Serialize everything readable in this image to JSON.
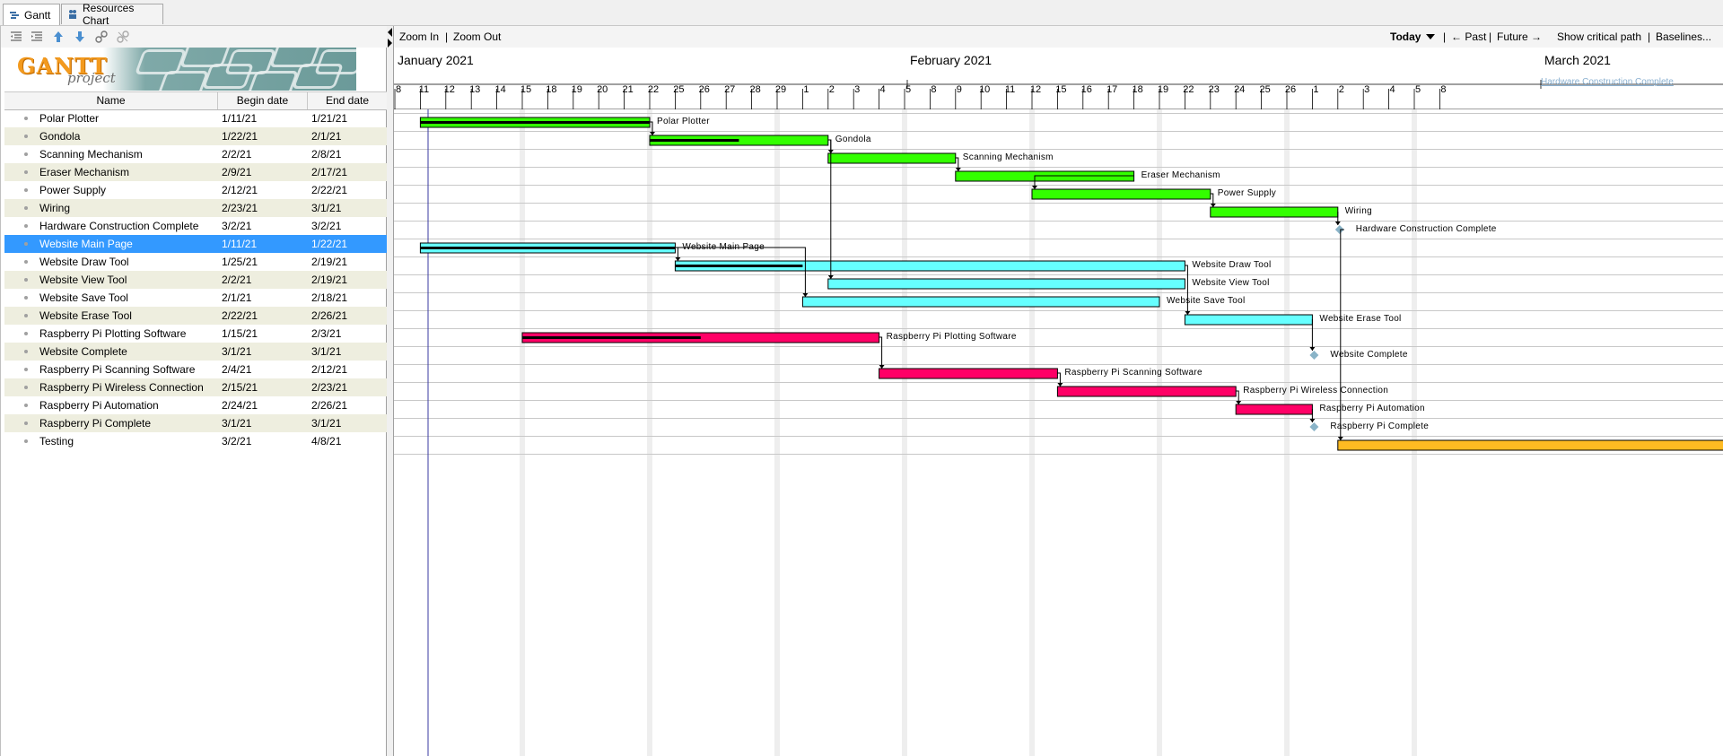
{
  "tabs": [
    {
      "label": "Gantt",
      "active": true
    },
    {
      "label": "Resources Chart",
      "active": false
    }
  ],
  "left_toolbar": [
    "outdent-icon",
    "indent-icon",
    "move-up-icon",
    "move-down-icon",
    "link-icon",
    "unlink-icon"
  ],
  "logo": {
    "title": "GANTT",
    "subtitle": "project"
  },
  "columns": {
    "name": "Name",
    "begin": "Begin date",
    "end": "End date"
  },
  "tasks": [
    {
      "name": "Polar Plotter",
      "begin": "1/11/21",
      "end": "1/21/21",
      "color": "#33ff00",
      "progress": 1.0,
      "type": "task"
    },
    {
      "name": "Gondola",
      "begin": "1/22/21",
      "end": "2/1/21",
      "color": "#33ff00",
      "progress": 0.5,
      "type": "task"
    },
    {
      "name": "Scanning Mechanism",
      "begin": "2/2/21",
      "end": "2/8/21",
      "color": "#33ff00",
      "progress": 0,
      "type": "task"
    },
    {
      "name": "Eraser Mechanism",
      "begin": "2/9/21",
      "end": "2/17/21",
      "color": "#33ff00",
      "progress": 0,
      "type": "task"
    },
    {
      "name": "Power Supply",
      "begin": "2/12/21",
      "end": "2/22/21",
      "color": "#33ff00",
      "progress": 0,
      "type": "task"
    },
    {
      "name": "Wiring",
      "begin": "2/23/21",
      "end": "3/1/21",
      "color": "#33ff00",
      "progress": 0,
      "type": "task"
    },
    {
      "name": "Hardware Construction Complete",
      "begin": "3/2/21",
      "end": "3/2/21",
      "color": "#8ab4c8",
      "progress": 0,
      "type": "milestone"
    },
    {
      "name": "Website Main Page",
      "begin": "1/11/21",
      "end": "1/22/21",
      "color": "#66ffff",
      "progress": 1.0,
      "type": "task",
      "selected": true
    },
    {
      "name": "Website Draw Tool",
      "begin": "1/25/21",
      "end": "2/19/21",
      "color": "#66ffff",
      "progress": 0.25,
      "type": "task"
    },
    {
      "name": "Website View Tool",
      "begin": "2/2/21",
      "end": "2/19/21",
      "color": "#66ffff",
      "progress": 0,
      "type": "task"
    },
    {
      "name": "Website Save Tool",
      "begin": "2/1/21",
      "end": "2/18/21",
      "color": "#66ffff",
      "progress": 0,
      "type": "task"
    },
    {
      "name": "Website Erase Tool",
      "begin": "2/22/21",
      "end": "2/26/21",
      "color": "#66ffff",
      "progress": 0,
      "type": "task"
    },
    {
      "name": "Raspberry Pi Plotting Software",
      "begin": "1/15/21",
      "end": "2/3/21",
      "color": "#ff0066",
      "progress": 0.5,
      "type": "task"
    },
    {
      "name": "Website Complete",
      "begin": "3/1/21",
      "end": "3/1/21",
      "color": "#8ab4c8",
      "progress": 0,
      "type": "milestone"
    },
    {
      "name": "Raspberry Pi Scanning Software",
      "begin": "2/4/21",
      "end": "2/12/21",
      "color": "#ff0066",
      "progress": 0,
      "type": "task"
    },
    {
      "name": "Raspberry Pi Wireless Connection",
      "begin": "2/15/21",
      "end": "2/23/21",
      "color": "#ff0066",
      "progress": 0,
      "type": "task"
    },
    {
      "name": "Raspberry Pi Automation",
      "begin": "2/24/21",
      "end": "2/26/21",
      "color": "#ff0066",
      "progress": 0,
      "type": "task"
    },
    {
      "name": "Raspberry Pi Complete",
      "begin": "3/1/21",
      "end": "3/1/21",
      "color": "#8ab4c8",
      "progress": 0,
      "type": "milestone"
    },
    {
      "name": "Testing",
      "begin": "3/2/21",
      "end": "4/8/21",
      "color": "#ffbb22",
      "progress": 0,
      "type": "task"
    }
  ],
  "chart_toolbar": {
    "zoom_in": "Zoom In",
    "sep1": "|",
    "zoom_out": "Zoom Out",
    "today": "Today",
    "sep2": "|",
    "past": "← Past",
    "sep3": "|",
    "future": "Future →",
    "critical": "Show critical path",
    "sep4": "|",
    "baselines": "Baselines..."
  },
  "months": [
    {
      "label": "January 2021"
    },
    {
      "label": "February 2021"
    },
    {
      "label": "March 2021"
    }
  ],
  "days": [
    "8",
    "11",
    "12",
    "13",
    "14",
    "15",
    "18",
    "19",
    "20",
    "21",
    "22",
    "25",
    "26",
    "27",
    "28",
    "29",
    "1",
    "2",
    "3",
    "4",
    "5",
    "8",
    "9",
    "10",
    "11",
    "12",
    "15",
    "16",
    "17",
    "18",
    "19",
    "22",
    "23",
    "24",
    "25",
    "26",
    "1",
    "2",
    "3",
    "4",
    "5",
    "8"
  ],
  "overflow_label": "Hardware Construction Complete"
}
